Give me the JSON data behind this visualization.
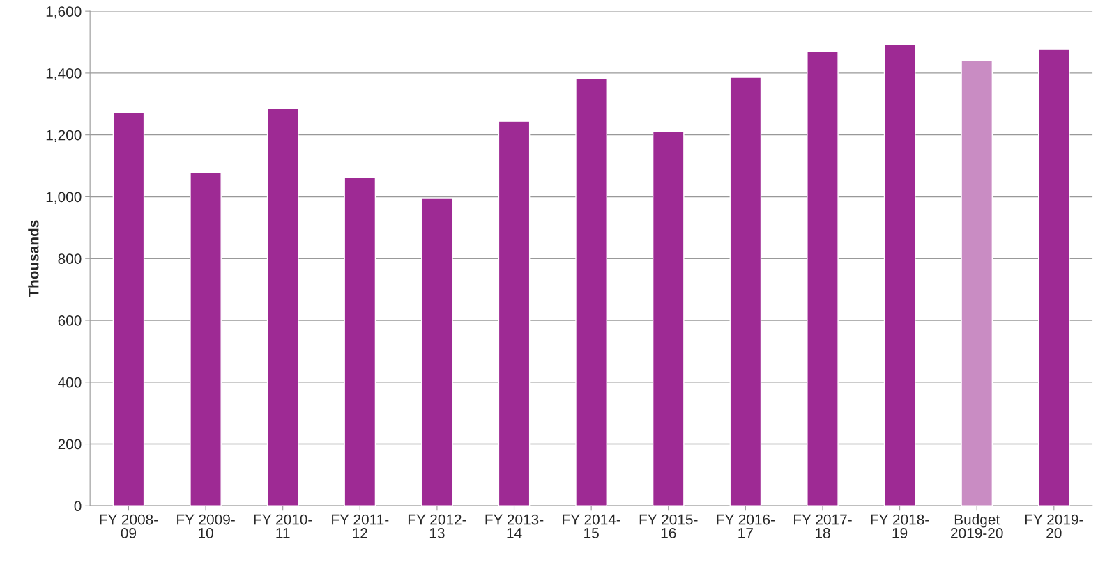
{
  "chart_data": {
    "type": "bar",
    "ylabel": "Thousands",
    "categories": [
      "FY 2008-\n09",
      "FY 2009-\n10",
      "FY 2010-\n11",
      "FY 2011-\n12",
      "FY 2012-\n13",
      "FY 2013-\n14",
      "FY 2014-\n15",
      "FY 2015-\n16",
      "FY 2016-\n17",
      "FY 2017-\n18",
      "FY 2018-\n19",
      "Budget\n2019-20",
      "FY 2019-\n20"
    ],
    "values": [
      1273,
      1077,
      1285,
      1061,
      994,
      1244,
      1381,
      1212,
      1386,
      1469,
      1494,
      1440,
      1476
    ],
    "colors": [
      "#9e2a94",
      "#9e2a94",
      "#9e2a94",
      "#9e2a94",
      "#9e2a94",
      "#9e2a94",
      "#9e2a94",
      "#9e2a94",
      "#9e2a94",
      "#9e2a94",
      "#9e2a94",
      "#c98cc3",
      "#9e2a94"
    ],
    "ylim": [
      0,
      1600
    ],
    "yticks": [
      {
        "value": 0,
        "label": "0"
      },
      {
        "value": 200,
        "label": "200"
      },
      {
        "value": 400,
        "label": "400"
      },
      {
        "value": 600,
        "label": "600"
      },
      {
        "value": 800,
        "label": "800"
      },
      {
        "value": 1000,
        "label": "1,000"
      },
      {
        "value": 1200,
        "label": "1,200"
      },
      {
        "value": 1400,
        "label": "1,400"
      },
      {
        "value": 1600,
        "label": "1,600"
      }
    ],
    "grid": "y",
    "legend": false
  }
}
